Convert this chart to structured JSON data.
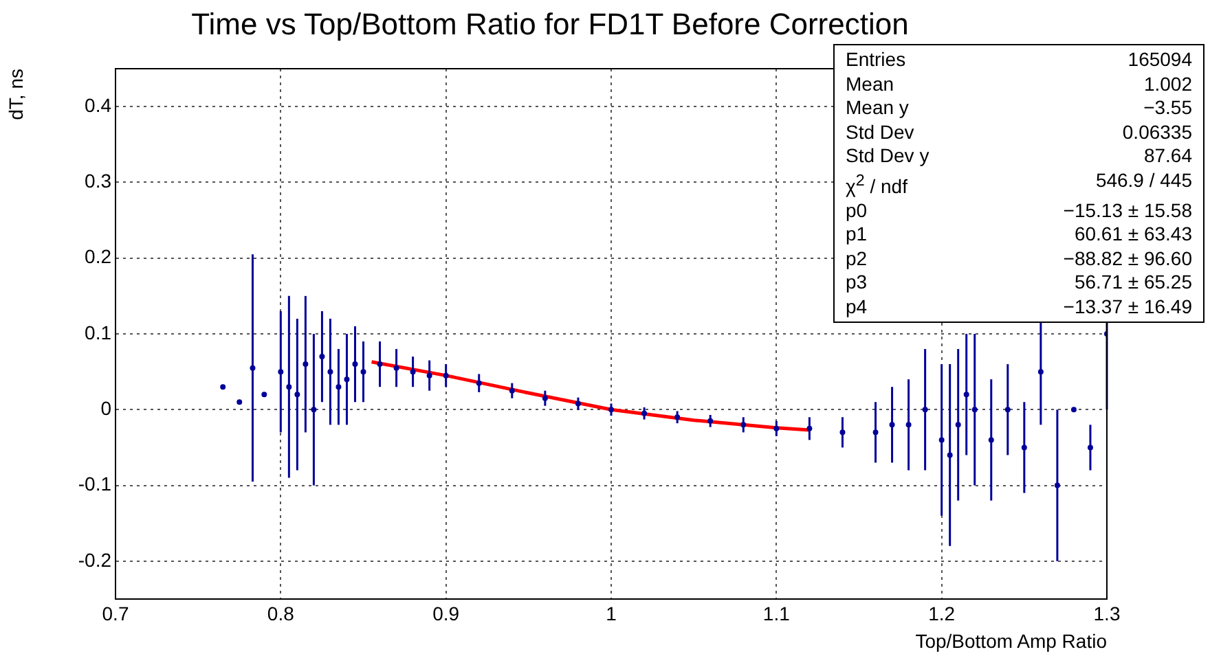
{
  "chart_data": {
    "type": "scatter",
    "title": "Time vs Top/Bottom Ratio for FD1T Before Correction",
    "xlabel": "Top/Bottom Amp Ratio",
    "ylabel": "dT, ns",
    "xlim": [
      0.7,
      1.3
    ],
    "ylim": [
      -0.25,
      0.45
    ],
    "xticks": [
      0.7,
      0.8,
      0.9,
      1,
      1.1,
      1.2,
      1.3
    ],
    "yticks": [
      -0.2,
      -0.1,
      0,
      0.1,
      0.2,
      0.3,
      0.4
    ],
    "grid": true,
    "legend": false,
    "marker": "circle",
    "series": [
      {
        "type": "scatter",
        "color": "#000099",
        "x": [
          0.765,
          0.775,
          0.783,
          0.79,
          0.8,
          0.805,
          0.81,
          0.815,
          0.82,
          0.825,
          0.83,
          0.835,
          0.84,
          0.845,
          0.85,
          0.86,
          0.87,
          0.88,
          0.89,
          0.9,
          0.92,
          0.94,
          0.96,
          0.98,
          1.0,
          1.02,
          1.04,
          1.06,
          1.08,
          1.1,
          1.12,
          1.14,
          1.16,
          1.17,
          1.18,
          1.19,
          1.2,
          1.205,
          1.21,
          1.215,
          1.22,
          1.23,
          1.24,
          1.25,
          1.26,
          1.27,
          1.28,
          1.29,
          1.3
        ],
        "values": [
          0.03,
          0.01,
          0.055,
          0.02,
          0.05,
          0.03,
          0.02,
          0.06,
          0.0,
          0.07,
          0.05,
          0.03,
          0.04,
          0.06,
          0.05,
          0.06,
          0.055,
          0.05,
          0.045,
          0.045,
          0.035,
          0.025,
          0.015,
          0.008,
          0.0,
          -0.005,
          -0.01,
          -0.015,
          -0.02,
          -0.025,
          -0.025,
          -0.03,
          -0.03,
          -0.02,
          -0.02,
          0.0,
          -0.04,
          -0.06,
          -0.02,
          0.02,
          0.0,
          -0.04,
          0.0,
          -0.05,
          0.05,
          -0.1,
          0.0,
          -0.05,
          0.1
        ],
        "errors": [
          null,
          null,
          0.15,
          null,
          0.08,
          0.12,
          0.1,
          0.09,
          0.1,
          0.06,
          0.07,
          0.05,
          0.06,
          0.05,
          0.04,
          0.03,
          0.025,
          0.02,
          0.02,
          0.015,
          0.012,
          0.01,
          0.01,
          0.008,
          0.008,
          0.008,
          0.008,
          0.008,
          0.01,
          0.01,
          0.015,
          0.02,
          0.04,
          0.05,
          0.06,
          0.08,
          0.1,
          0.12,
          0.1,
          0.08,
          0.1,
          0.08,
          0.06,
          0.06,
          0.07,
          0.1,
          null,
          0.03,
          0.1
        ]
      },
      {
        "type": "line",
        "color": "#ff0000",
        "marker": "none",
        "x": [
          0.855,
          0.9,
          0.95,
          1.0,
          1.05,
          1.1,
          1.12
        ],
        "values": [
          0.063,
          0.045,
          0.022,
          0.0,
          -0.014,
          -0.024,
          -0.027
        ]
      }
    ],
    "annotations": [
      "Entries",
      "165094",
      "Mean",
      "1.002",
      "Mean y",
      "−3.55",
      "Std Dev",
      "0.06335",
      "Std Dev y",
      "87.64",
      "χ$^{2}$ / ndf",
      "546.9 / 445",
      "p0",
      "−15.13 ± 15.58",
      "p1",
      "60.61 ± 63.43",
      "p2",
      "−88.82 ± 96.60",
      "p3",
      "56.71 ± 65.25",
      "p4",
      "−13.37 ± 16.49"
    ]
  }
}
